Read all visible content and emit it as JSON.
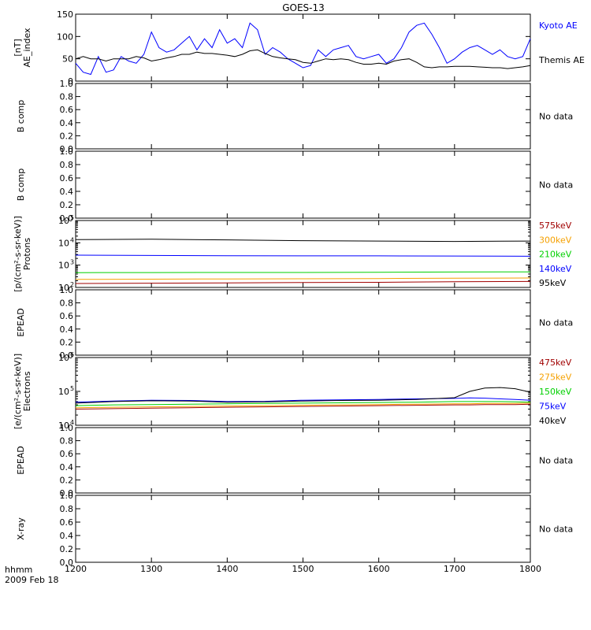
{
  "title": "GOES-13",
  "footer": {
    "time_label": "hhmm",
    "date_label": "2009 Feb 18"
  },
  "x_ticks": [
    "1200",
    "1300",
    "1400",
    "1500",
    "1600",
    "1700",
    "1800"
  ],
  "colors": {
    "black": "#000000",
    "blue": "#0000ff",
    "green": "#00d000",
    "orange": "#f5a000",
    "darkred": "#a00000"
  },
  "chart_data": [
    {
      "type": "line",
      "id": "ae",
      "ylabel": [
        "AE_index",
        "[nT]"
      ],
      "ylim": [
        0,
        150
      ],
      "yticks": [
        "0",
        "50",
        "100",
        "150"
      ],
      "x": [
        1200,
        1210,
        1220,
        1230,
        1240,
        1250,
        1260,
        1270,
        1280,
        1290,
        1300,
        1310,
        1320,
        1330,
        1340,
        1350,
        1360,
        1370,
        1380,
        1390,
        1400,
        1410,
        1420,
        1430,
        1440,
        1450,
        1460,
        1470,
        1480,
        1490,
        1500,
        1510,
        1520,
        1530,
        1540,
        1550,
        1560,
        1570,
        1580,
        1590,
        1600,
        1610,
        1620,
        1630,
        1640,
        1650,
        1660,
        1670,
        1680,
        1690,
        1700,
        1710,
        1720,
        1730,
        1740,
        1750,
        1760,
        1770,
        1780,
        1790,
        1800
      ],
      "series": [
        {
          "name": "Kyoto AE",
          "color": "#0000ff",
          "values": [
            40,
            20,
            15,
            55,
            20,
            25,
            55,
            45,
            40,
            60,
            110,
            75,
            65,
            70,
            85,
            100,
            70,
            95,
            75,
            115,
            85,
            95,
            75,
            130,
            115,
            60,
            75,
            65,
            50,
            40,
            30,
            35,
            70,
            55,
            70,
            75,
            80,
            55,
            50,
            55,
            60,
            40,
            50,
            75,
            110,
            125,
            130,
            105,
            75,
            40,
            50,
            65,
            75,
            80,
            70,
            60,
            70,
            55,
            50,
            55,
            95
          ]
        },
        {
          "name": "Themis AE",
          "color": "#000000",
          "values": [
            50,
            55,
            50,
            50,
            45,
            50,
            50,
            50,
            55,
            52,
            45,
            48,
            52,
            55,
            60,
            60,
            65,
            62,
            62,
            60,
            58,
            55,
            60,
            68,
            70,
            62,
            55,
            52,
            50,
            48,
            42,
            40,
            45,
            50,
            48,
            50,
            48,
            42,
            38,
            38,
            40,
            38,
            45,
            48,
            50,
            42,
            32,
            30,
            32,
            32,
            33,
            33,
            33,
            32,
            31,
            30,
            30,
            28,
            30,
            32,
            35
          ]
        }
      ]
    },
    {
      "type": "line",
      "id": "bcomp1",
      "ylabel": [
        "B comp"
      ],
      "ylim": [
        0,
        1
      ],
      "yticks": [
        "0.0",
        "0.2",
        "0.4",
        "0.6",
        "0.8",
        "1.0"
      ],
      "note": "No data",
      "series": []
    },
    {
      "type": "line",
      "id": "bcomp2",
      "ylabel": [
        "B comp"
      ],
      "ylim": [
        0,
        1
      ],
      "yticks": [
        "0.0",
        "0.2",
        "0.4",
        "0.6",
        "0.8",
        "1.0"
      ],
      "note": "No data",
      "series": []
    },
    {
      "type": "line",
      "id": "protons",
      "log": true,
      "ylabel": [
        "Protons",
        "[p/(cm²-s-sr-keV)]"
      ],
      "ylim": [
        100,
        100000
      ],
      "yticks": [
        {
          "base": "10",
          "exp": "2"
        },
        {
          "base": "10",
          "exp": "3"
        },
        {
          "base": "10",
          "exp": "4"
        },
        {
          "base": "10",
          "exp": "5"
        }
      ],
      "x": [
        1200,
        1300,
        1400,
        1500,
        1600,
        1700,
        1800
      ],
      "series": [
        {
          "name": "575keV",
          "color": "#a00000",
          "values": [
            150,
            155,
            160,
            165,
            170,
            180,
            185
          ]
        },
        {
          "name": "300keV",
          "color": "#f5a000",
          "values": [
            230,
            235,
            240,
            245,
            250,
            260,
            265
          ]
        },
        {
          "name": "210keV",
          "color": "#00d000",
          "values": [
            460,
            465,
            470,
            470,
            480,
            490,
            500
          ]
        },
        {
          "name": "140keV",
          "color": "#0000ff",
          "values": [
            2800,
            2700,
            2650,
            2600,
            2600,
            2550,
            2500
          ]
        },
        {
          "name": "95keV",
          "color": "#000000",
          "values": [
            14000,
            14500,
            13500,
            12500,
            12000,
            11500,
            12000
          ]
        }
      ]
    },
    {
      "type": "line",
      "id": "epead1",
      "ylabel": [
        "EPEAD"
      ],
      "ylim": [
        0,
        1
      ],
      "yticks": [
        "0.0",
        "0.2",
        "0.4",
        "0.6",
        "0.8",
        "1.0"
      ],
      "note": "No data",
      "series": []
    },
    {
      "type": "line",
      "id": "electrons",
      "log": true,
      "ylabel": [
        "Electrons",
        "[e/(cm²-s-sr-keV)]"
      ],
      "ylim": [
        10000,
        1000000
      ],
      "yticks": [
        {
          "base": "10",
          "exp": "4"
        },
        {
          "base": "10",
          "exp": "5"
        },
        {
          "base": "10",
          "exp": "6"
        }
      ],
      "x": [
        1200,
        1250,
        1300,
        1350,
        1400,
        1450,
        1500,
        1550,
        1600,
        1650,
        1700,
        1720,
        1740,
        1760,
        1780,
        1800
      ],
      "series": [
        {
          "name": "475keV",
          "color": "#a00000",
          "values": [
            30000,
            31000,
            32000,
            33000,
            34000,
            35000,
            36000,
            37000,
            38000,
            39000,
            40000,
            40000,
            41000,
            41000,
            41000,
            42000
          ]
        },
        {
          "name": "275keV",
          "color": "#f5a000",
          "values": [
            33000,
            34000,
            35000,
            36000,
            37000,
            38000,
            39000,
            40000,
            41000,
            42000,
            43000,
            43000,
            44000,
            44000,
            44000,
            45000
          ]
        },
        {
          "name": "150keV",
          "color": "#00d000",
          "values": [
            38000,
            40000,
            41000,
            42000,
            43000,
            44000,
            45000,
            46000,
            47000,
            48000,
            50000,
            50000,
            50000,
            50000,
            49000,
            48000
          ]
        },
        {
          "name": "75keV",
          "color": "#0000ff",
          "values": [
            48000,
            52000,
            55000,
            54000,
            50000,
            51000,
            55000,
            56000,
            58000,
            60000,
            62000,
            64000,
            63000,
            60000,
            58000,
            55000
          ]
        },
        {
          "name": "40keV",
          "color": "#000000",
          "values": [
            45000,
            50000,
            53000,
            52000,
            48000,
            49000,
            52000,
            54000,
            55000,
            58000,
            65000,
            100000,
            125000,
            130000,
            120000,
            95000
          ]
        }
      ]
    },
    {
      "type": "line",
      "id": "epead2",
      "ylabel": [
        "EPEAD"
      ],
      "ylim": [
        0,
        1
      ],
      "yticks": [
        "0.0",
        "0.2",
        "0.4",
        "0.6",
        "0.8",
        "1.0"
      ],
      "note": "No data",
      "series": []
    },
    {
      "type": "line",
      "id": "xray",
      "ylabel": [
        "X-ray"
      ],
      "ylim": [
        0,
        1
      ],
      "yticks": [
        "0.0",
        "0.2",
        "0.4",
        "0.6",
        "0.8",
        "1.0"
      ],
      "note": "No data",
      "series": []
    }
  ]
}
